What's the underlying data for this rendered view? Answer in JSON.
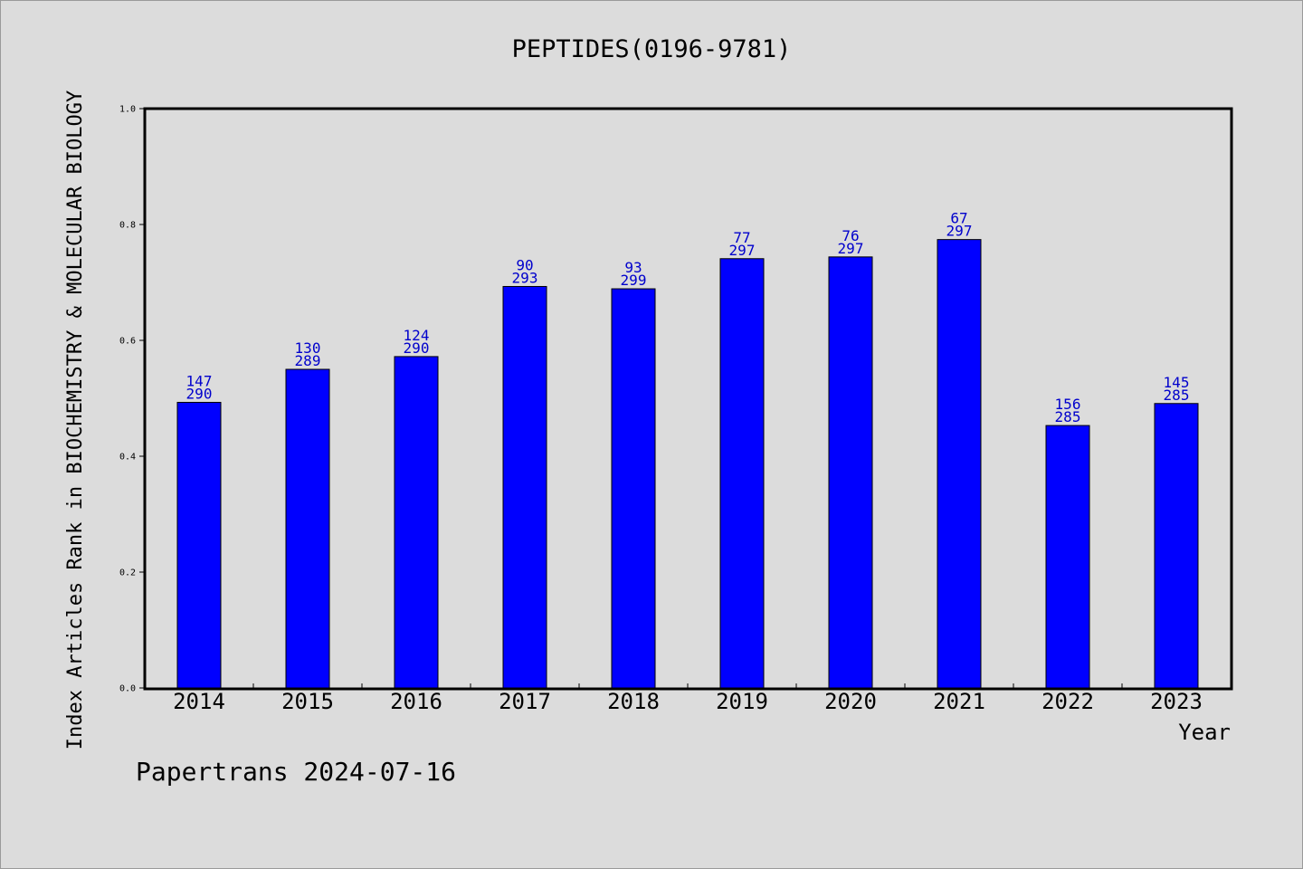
{
  "chart_data": {
    "type": "bar",
    "title": "PEPTIDES(0196-9781)",
    "xlabel": "Year",
    "ylabel": "Index Articles Rank in BIOCHEMISTRY & MOLECULAR BIOLOGY",
    "ylim": [
      0,
      1.0
    ],
    "yticks": [
      "0.0",
      "0.2",
      "0.4",
      "0.6",
      "0.8",
      "1.0"
    ],
    "categories": [
      "2014",
      "2015",
      "2016",
      "2017",
      "2018",
      "2019",
      "2020",
      "2021",
      "2022",
      "2023"
    ],
    "values": [
      0.493,
      0.55,
      0.572,
      0.693,
      0.689,
      0.741,
      0.744,
      0.774,
      0.453,
      0.491
    ],
    "rank_labels": [
      "147",
      "130",
      "124",
      "90",
      "93",
      "77",
      "76",
      "67",
      "156",
      "145"
    ],
    "total_labels": [
      "290",
      "289",
      "290",
      "293",
      "299",
      "297",
      "297",
      "297",
      "285",
      "285"
    ],
    "bar_color": "#0000ff",
    "label_color": "#0000cc",
    "grid": false,
    "legend": "none"
  },
  "footer": "Papertrans 2024-07-16"
}
